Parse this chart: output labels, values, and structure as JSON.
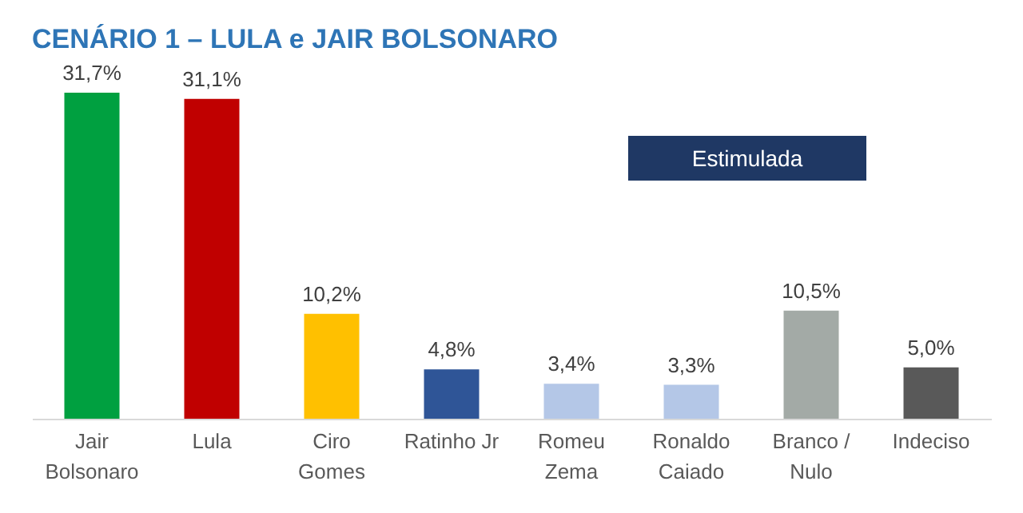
{
  "chart_data": {
    "type": "bar",
    "title": "CENÁRIO 1 – LULA e JAIR BOLSONARO",
    "categories": [
      "Jair\nBolsonaro",
      "Lula",
      "Ciro\nGomes",
      "Ratinho Jr",
      "Romeu\nZema",
      "Ronaldo\nCaiado",
      "Branco /\nNulo",
      "Indeciso"
    ],
    "values": [
      31.7,
      31.1,
      10.2,
      4.8,
      3.4,
      3.3,
      10.5,
      5.0
    ],
    "value_labels": [
      "31,7%",
      "31,1%",
      "10,2%",
      "4,8%",
      "3,4%",
      "3,3%",
      "10,5%",
      "5,0%"
    ],
    "colors": [
      "#00a040",
      "#c00000",
      "#ffc000",
      "#2f5597",
      "#b4c7e7",
      "#b4c7e7",
      "#a3aaa6",
      "#595959"
    ],
    "annotations": [
      "Estimulada"
    ],
    "tick_labels": "x"
  }
}
